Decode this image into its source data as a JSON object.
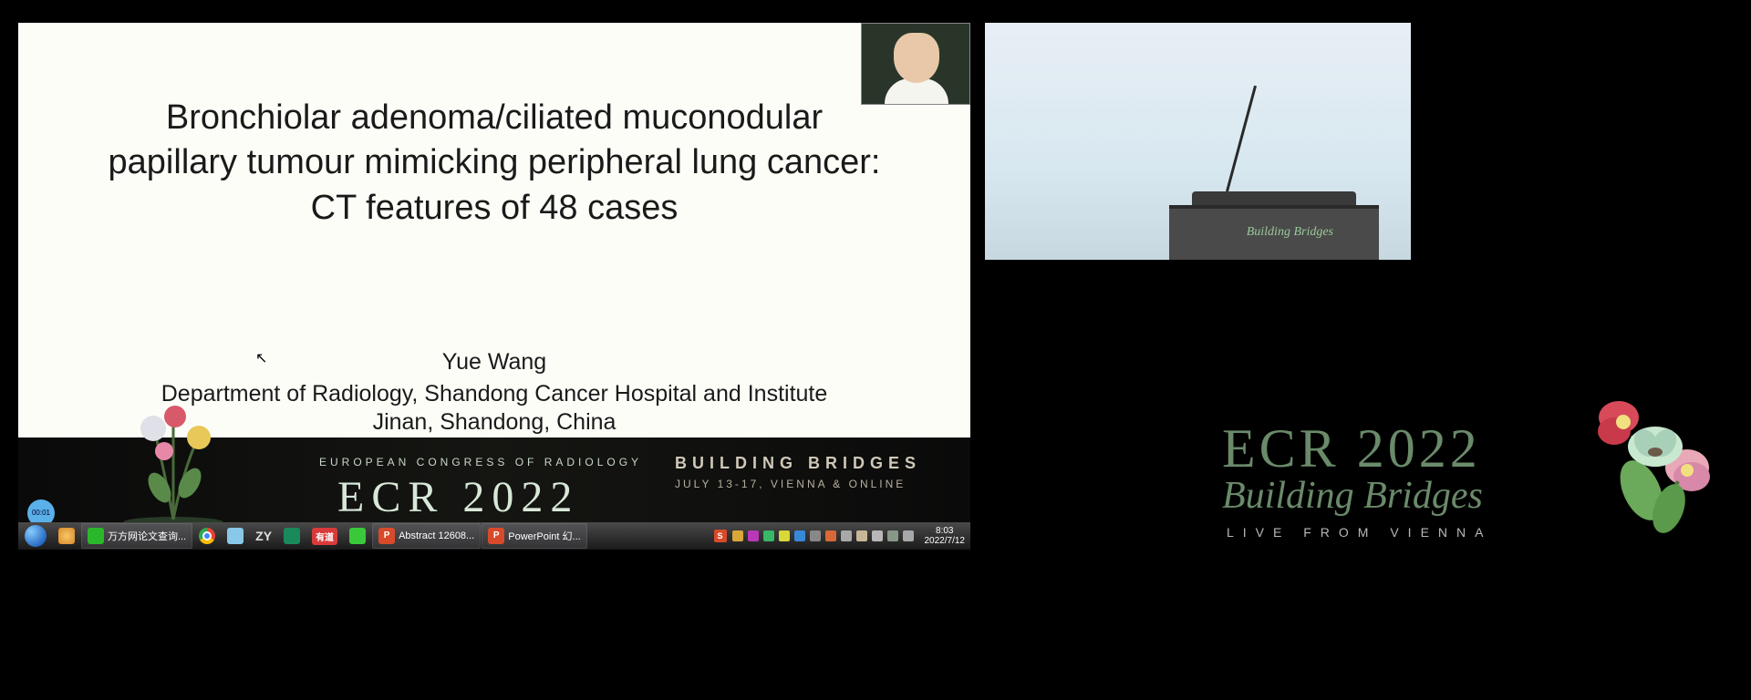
{
  "slide": {
    "title": "Bronchiolar adenoma/ciliated muconodular\npapillary tumour mimicking peripheral lung cancer:\nCT features of 48 cases",
    "author": "Yue Wang",
    "department": "Department of Radiology, Shandong Cancer Hospital and Institute",
    "location": "Jinan, Shandong, China",
    "timer": "00:01",
    "background": "#fdfdf8",
    "text_color": "#1a1a1a"
  },
  "slide_footer": {
    "congress": "EUROPEAN CONGRESS OF RADIOLOGY",
    "logo": "ECR 2022",
    "tagline": "BUILDING BRIDGES",
    "dates": "JULY 13-17, VIENNA & ONLINE"
  },
  "room": {
    "lectern_text": "Building Bridges"
  },
  "branding": {
    "logo": "ECR 2022",
    "tagline": "Building Bridges",
    "subtitle": "LIVE FROM VIENNA",
    "logo_color": "#6a8a6a",
    "accent_color": "#b8b8b8"
  },
  "taskbar": {
    "items": [
      {
        "label": "万方网论文查询...",
        "icon": "#2ab82a",
        "bg": true
      },
      {
        "label": "",
        "icon_svg": "chrome",
        "bg": false
      },
      {
        "label": "",
        "icon": "#88c8e8",
        "bg": false
      },
      {
        "label": "ZY",
        "icon": null,
        "bg": false,
        "text_style": "bold"
      },
      {
        "label": "",
        "icon": "#1a8a5a",
        "bg": false
      },
      {
        "label": "有道",
        "icon": "#d83a3a",
        "bg": false,
        "pill": true
      },
      {
        "label": "",
        "icon": "#3ac83a",
        "bg": false
      },
      {
        "label": "Abstract 12608...",
        "icon": "#d84a2a",
        "bg": true,
        "prefix": "P"
      },
      {
        "label": "PowerPoint 幻...",
        "icon": "#d84a2a",
        "bg": true,
        "prefix": "P"
      }
    ],
    "tray": {
      "icons": [
        "#d8a838",
        "#b838b8",
        "#38b868",
        "#d8d838",
        "#3888d8",
        "#888888",
        "#d86838",
        "#a8a8a8",
        "#c8b898",
        "#b8b8b8",
        "#889888",
        "#a8a8a8"
      ],
      "s_icon": "S",
      "time": "8:03",
      "date": "2022/7/12"
    }
  },
  "colors": {
    "page_bg": "#000000",
    "taskbar_top": "#4a4a4a",
    "taskbar_bottom": "#1a1a1a"
  }
}
